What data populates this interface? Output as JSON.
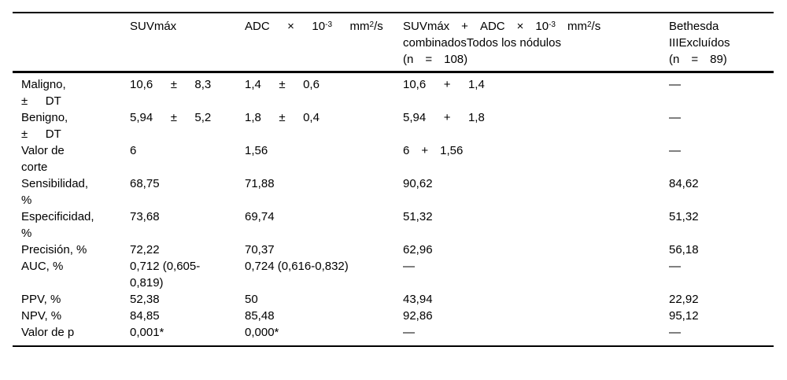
{
  "table": {
    "columns": [
      {
        "label": ""
      },
      {
        "label": "SUVmáx"
      },
      {
        "label": "ADC  ×  10^-3^  mm^2^/s"
      },
      {
        "label": "SUVmáx + ADC × 10^-3^ mm^2^/s\ncombinadosTodos los nódulos\n(n = 108)"
      },
      {
        "label": "Bethesda\nIIIExcluídos\n(n = 89)"
      }
    ],
    "rows": [
      {
        "label": "Maligno,\n±  DT",
        "cells": [
          "10,6  ±  8,3",
          "1,4  ±  0,6",
          "10,6  +  1,4",
          "—"
        ]
      },
      {
        "label": "Benigno,\n±  DT",
        "cells": [
          "5,94  ±  5,2",
          "1,8  ±  0,4",
          "5,94  +  1,8",
          "—"
        ]
      },
      {
        "label": "Valor de\ncorte",
        "cells": [
          "6",
          "1,56",
          "6 + 1,56",
          "—"
        ]
      },
      {
        "label": "Sensibilidad,\n%",
        "cells": [
          "68,75",
          "71,88",
          "90,62",
          "84,62"
        ]
      },
      {
        "label": "Especificidad,\n%",
        "cells": [
          "73,68",
          "69,74",
          "51,32",
          "51,32"
        ]
      },
      {
        "label": "Precisión, %",
        "cells": [
          "72,22",
          "70,37",
          "62,96",
          "56,18"
        ]
      },
      {
        "label": "AUC, %",
        "cells": [
          "0,712 (0,605-\n0,819)",
          "0,724 (0,616-0,832)",
          "—",
          "—"
        ]
      },
      {
        "label": "PPV, %",
        "cells": [
          "52,38",
          "50",
          "43,94",
          "22,92"
        ]
      },
      {
        "label": "NPV, %",
        "cells": [
          "84,85",
          "85,48",
          "92,86",
          "95,12"
        ]
      },
      {
        "label": "Valor de p",
        "cells": [
          "0,001*",
          "0,000*",
          "—",
          "—"
        ]
      }
    ]
  }
}
